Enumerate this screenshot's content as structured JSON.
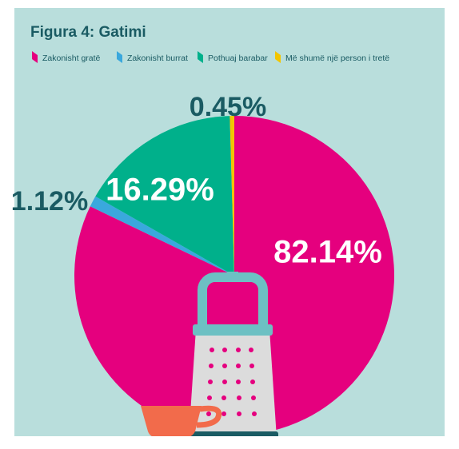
{
  "chart_data": {
    "type": "pie",
    "title": "Figura 4: Gatimi",
    "categories": [
      "Zakonisht gratë",
      "Zakonisht burrat",
      "Pothuaj barabar",
      "Më shumë një person i tretë"
    ],
    "values": [
      82.14,
      1.12,
      16.29,
      0.45
    ],
    "value_labels": [
      "82.14%",
      "1.12%",
      "16.29%",
      "0.45%"
    ],
    "colors": [
      "#e5007e",
      "#3aa8dd",
      "#00b08b",
      "#f2c500"
    ]
  }
}
